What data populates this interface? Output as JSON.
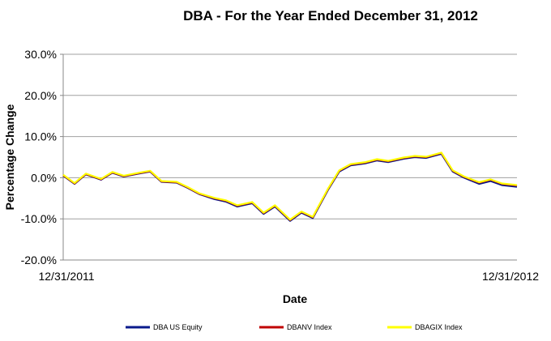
{
  "chart_data": {
    "type": "line",
    "title": "DBA - For the Year Ended December 31, 2012",
    "xlabel": "Date",
    "ylabel": "Percentage Change",
    "x_tick_labels": [
      "12/31/2011",
      "12/31/2012"
    ],
    "y_ticks": [
      {
        "value": 30,
        "label": "30.0%"
      },
      {
        "value": 20,
        "label": "20.0%"
      },
      {
        "value": 10,
        "label": "10.0%"
      },
      {
        "value": 0,
        "label": "0.0%"
      },
      {
        "value": -10,
        "label": "-10.0%"
      },
      {
        "value": -20,
        "label": "-20.0%"
      }
    ],
    "ylim": [
      -20,
      30
    ],
    "xlim": [
      0,
      12
    ],
    "grid": "horizontal",
    "legend_position": "bottom",
    "x_unit": "month of 2012",
    "x": [
      0,
      0.3,
      0.6,
      1,
      1.3,
      1.6,
      2,
      2.3,
      2.6,
      3,
      3.3,
      3.6,
      4,
      4.3,
      4.6,
      5,
      5.3,
      5.6,
      6,
      6.3,
      6.6,
      7,
      7.3,
      7.6,
      8,
      8.3,
      8.6,
      9,
      9.3,
      9.6,
      10,
      10.3,
      10.6,
      11,
      11.3,
      11.6,
      12
    ],
    "series": [
      {
        "name": "DBA US Equity",
        "color": "#0a1a8c",
        "values": [
          0.5,
          -1.5,
          0.8,
          -0.5,
          1.2,
          0.3,
          1.0,
          1.5,
          -1.0,
          -1.2,
          -2.5,
          -4.0,
          -5.2,
          -5.8,
          -7.0,
          -6.2,
          -8.8,
          -7.0,
          -10.5,
          -8.5,
          -9.8,
          -3.0,
          1.5,
          3.0,
          3.5,
          4.2,
          3.8,
          4.6,
          5.0,
          4.8,
          5.8,
          1.5,
          0.0,
          -1.5,
          -0.8,
          -1.8,
          -2.2
        ]
      },
      {
        "name": "DBANV Index",
        "color": "#c00000",
        "values": [
          0.6,
          -1.4,
          0.9,
          -0.4,
          1.3,
          0.4,
          1.1,
          1.6,
          -0.9,
          -1.1,
          -2.4,
          -3.9,
          -5.0,
          -5.6,
          -6.8,
          -6.0,
          -8.6,
          -6.8,
          -10.3,
          -8.3,
          -9.6,
          -2.8,
          1.7,
          3.2,
          3.7,
          4.4,
          4.0,
          4.8,
          5.2,
          5.0,
          6.0,
          1.7,
          0.2,
          -1.2,
          -0.5,
          -1.5,
          -1.9
        ]
      },
      {
        "name": "DBAGIX Index",
        "color": "#ffff00",
        "values": [
          0.7,
          -1.3,
          1.0,
          -0.3,
          1.4,
          0.5,
          1.2,
          1.7,
          -0.8,
          -1.0,
          -2.3,
          -3.8,
          -4.9,
          -5.5,
          -6.7,
          -5.9,
          -8.5,
          -6.7,
          -10.2,
          -8.2,
          -9.5,
          -2.7,
          1.8,
          3.3,
          3.8,
          4.5,
          4.1,
          4.9,
          5.3,
          5.1,
          6.1,
          1.8,
          0.3,
          -1.1,
          -0.4,
          -1.4,
          -1.8
        ]
      }
    ]
  }
}
